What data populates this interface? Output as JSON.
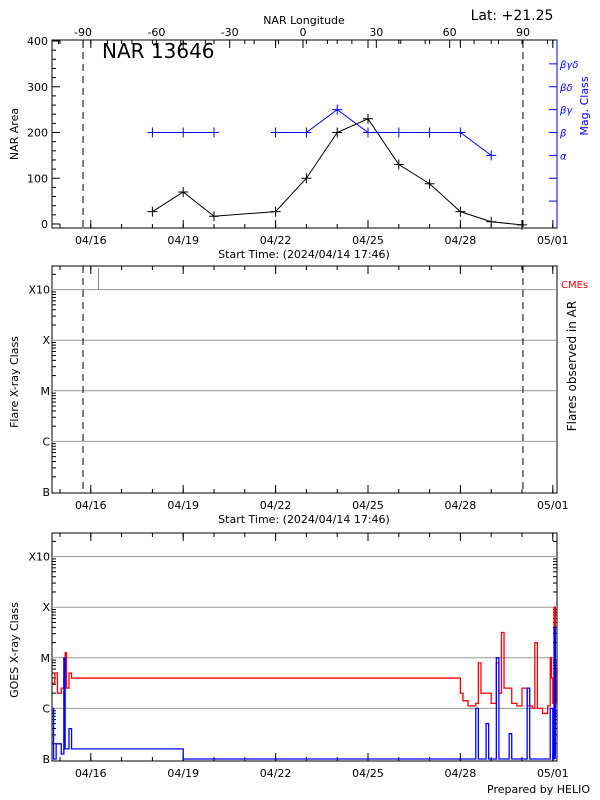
{
  "chart_data": [
    {
      "type": "line",
      "title": "NAR 13646",
      "lat_label": "Lat: +21.25",
      "xlabel": "Start Time: (2024/04/14 17:46)",
      "start_time": "2024-04-14T17:46",
      "x_tick_labels": [
        "04/16",
        "04/19",
        "04/22",
        "04/25",
        "04/28",
        "05/01"
      ],
      "x_tick_dates": [
        "2024-04-16T00:00",
        "2024-04-19T00:00",
        "2024-04-22T00:00",
        "2024-04-25T00:00",
        "2024-04-28T00:00",
        "2024-05-01T00:00"
      ],
      "top_axis_label": "NAR Longitude",
      "top_tick_labels": [
        "-90",
        "-60",
        "-30",
        "0",
        "30",
        "60",
        "90"
      ],
      "ylabel": "NAR Area",
      "ylim": [
        0,
        400
      ],
      "y_tick_labels": [
        "0",
        "100",
        "200",
        "300",
        "400"
      ],
      "right_ylabel": "Mag. Class",
      "right_tick_labels": [
        "α",
        "β",
        "βγ",
        "βδ",
        "βγδ"
      ],
      "right_tick_values": [
        150,
        200,
        250,
        300,
        350
      ],
      "limb_lines_longitude": [
        -90,
        90
      ],
      "series": [
        {
          "name": "NAR Area",
          "color": "#000000",
          "x": [
            "2024-04-18T00:00",
            "2024-04-19T00:00",
            "2024-04-20T00:00",
            "2024-04-22T00:00",
            "2024-04-23T00:00",
            "2024-04-24T00:00",
            "2024-04-25T00:00",
            "2024-04-26T00:00",
            "2024-04-27T00:00",
            "2024-04-28T00:00",
            "2024-04-29T00:00",
            "2024-04-30T00:00"
          ],
          "y": [
            27,
            70,
            17,
            27,
            100,
            200,
            230,
            130,
            88,
            27,
            5,
            -2
          ]
        },
        {
          "name": "Mag. Class",
          "color": "#0000ff",
          "x": [
            "2024-04-18T00:00",
            "2024-04-19T00:00",
            "2024-04-20T00:00",
            "2024-04-22T00:00",
            "2024-04-23T00:00",
            "2024-04-24T00:00",
            "2024-04-25T00:00",
            "2024-04-26T00:00",
            "2024-04-27T00:00",
            "2024-04-28T00:00",
            "2024-04-29T00:00"
          ],
          "y": [
            200,
            200,
            200,
            200,
            200,
            250,
            200,
            200,
            200,
            200,
            150
          ],
          "segments_broken_after_index": [
            2
          ]
        }
      ]
    },
    {
      "type": "scatter",
      "xlabel": "Start Time: (2024/04/14 17:46)",
      "ylabel": "Flare X-ray Class",
      "right_ylabel": "Flares observed in AR",
      "right_label": "CMEs",
      "right_label_color": "#ff0000",
      "y_tick_labels": [
        "B",
        "C",
        "M",
        "X",
        "X10"
      ],
      "y_tick_log_flux": [
        -7,
        -6,
        -5,
        -4,
        -3
      ],
      "grid": true,
      "cme_events": [
        "2024-04-16T06:00"
      ],
      "flares": []
    },
    {
      "type": "line",
      "ylabel": "GOES X-ray Class",
      "y_tick_labels": [
        "B",
        "C",
        "M",
        "X",
        "X10"
      ],
      "y_tick_log_flux": [
        -7,
        -6,
        -5,
        -4,
        -3
      ],
      "ylim": [
        -7,
        -2.7
      ],
      "grid": true,
      "footer": "Prepared by HELIO",
      "series": [
        {
          "color": "#ff0000",
          "x": [
            "2024-04-14T18:00",
            "2024-04-14T20:00",
            "2024-04-14T22:00",
            "2024-04-15T01:00",
            "2024-04-15T03:00",
            "2024-04-15T04:00",
            "2024-04-15T05:00",
            "2024-04-15T07:00",
            "2024-04-15T09:00",
            "2024-04-15T10:00",
            "2024-04-28T00:00",
            "2024-04-28T02:00",
            "2024-04-28T06:00",
            "2024-04-28T12:00",
            "2024-04-28T14:00",
            "2024-04-28T16:00",
            "2024-04-29T00:00",
            "2024-04-29T04:00",
            "2024-04-29T06:00",
            "2024-04-29T08:00",
            "2024-04-29T10:00",
            "2024-04-29T16:00",
            "2024-04-29T20:00",
            "2024-04-30T00:00",
            "2024-04-30T04:00",
            "2024-04-30T08:00",
            "2024-04-30T10:00",
            "2024-04-30T12:00",
            "2024-04-30T16:00",
            "2024-04-30T20:00",
            "2024-04-30T22:00",
            "2024-04-30T23:00",
            "2024-05-01T00:00",
            "2024-05-01T01:00",
            "2024-05-01T02:00",
            "2024-05-01T03:00"
          ],
          "y": [
            -5.5,
            -5.3,
            -5.7,
            -5.6,
            -5.4,
            -4.9,
            -5.6,
            -5.3,
            -5.4,
            -5.4,
            -5.7,
            -5.85,
            -5.95,
            -5.9,
            -5.1,
            -5.7,
            -5.9,
            -5.1,
            -5.7,
            -4.5,
            -5.6,
            -5.9,
            -5.95,
            -5.6,
            -5.95,
            -6.0,
            -4.7,
            -6.0,
            -6.1,
            -5.95,
            -5.0,
            -5.4,
            -5.9,
            -4.0,
            -5.2,
            -5.9
          ]
        },
        {
          "color": "#0000ff",
          "x": [
            "2024-04-14T18:00",
            "2024-04-14T19:00",
            "2024-04-14T21:00",
            "2024-04-15T01:00",
            "2024-04-15T03:00",
            "2024-04-15T04:00",
            "2024-04-15T07:00",
            "2024-04-15T09:00",
            "2024-04-19T00:00",
            "2024-04-28T00:00",
            "2024-04-28T12:00",
            "2024-04-28T14:00",
            "2024-04-28T20:00",
            "2024-04-28T22:00",
            "2024-04-29T04:00",
            "2024-04-29T06:00",
            "2024-04-29T14:00",
            "2024-04-29T16:00",
            "2024-04-30T04:00",
            "2024-04-30T06:00",
            "2024-04-30T22:00",
            "2024-05-01T00:00",
            "2024-05-01T01:00",
            "2024-05-01T02:00"
          ],
          "y": [
            -6.0,
            -7.0,
            -6.7,
            -6.9,
            -5.0,
            -6.8,
            -6.4,
            -6.8,
            -7.0,
            -7.0,
            -6.0,
            -7.0,
            -6.3,
            -7.0,
            -5.0,
            -7.0,
            -6.5,
            -7.0,
            -5.6,
            -7.0,
            -6.0,
            -7.0,
            -4.4,
            -7.0
          ]
        }
      ]
    }
  ]
}
